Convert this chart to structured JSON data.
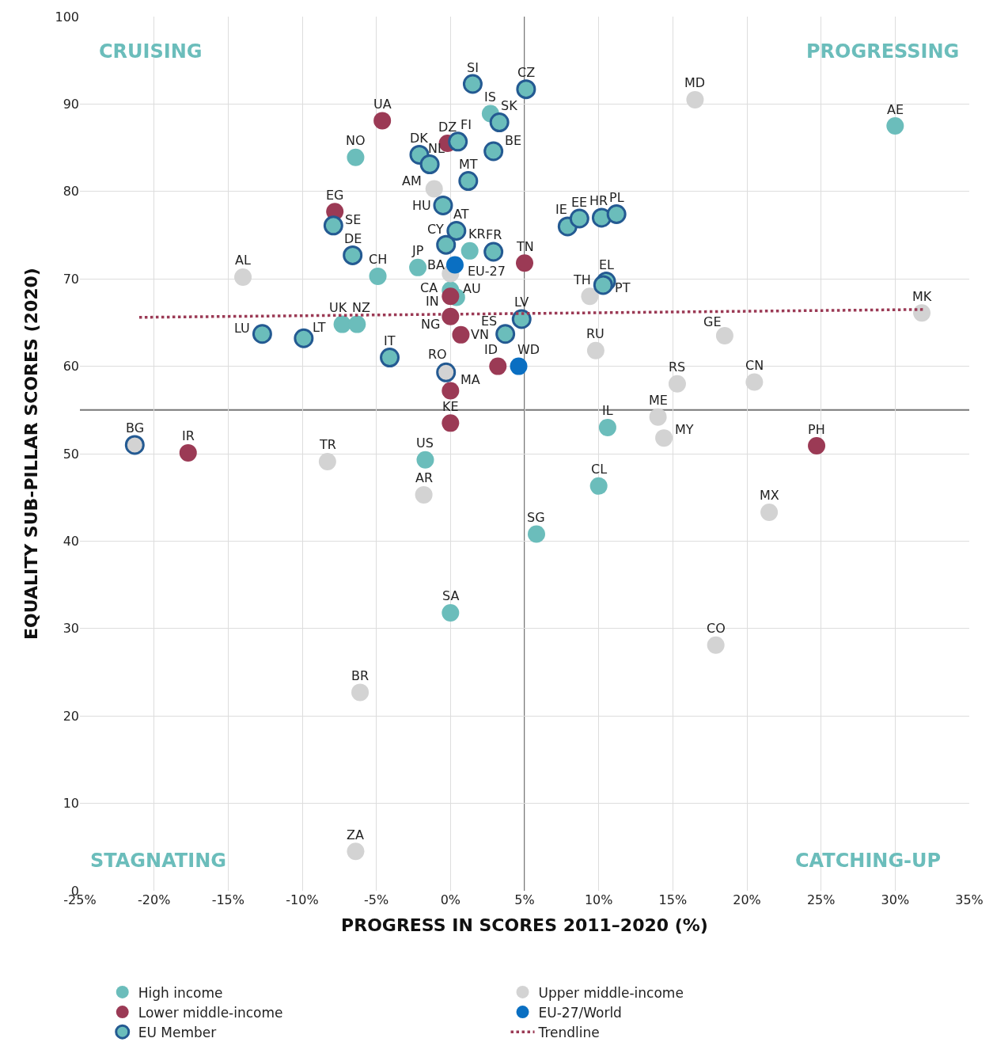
{
  "chart_data": {
    "type": "scatter",
    "xlabel": "PROGRESS IN SCORES 2011–2020 (%)",
    "ylabel": "EQUALITY SUB-PILLAR SCORES (2020)",
    "xlim": [
      -25,
      35
    ],
    "ylim": [
      0,
      100
    ],
    "xticks": [
      {
        "value": -25,
        "label": "-25%"
      },
      {
        "value": -20,
        "label": "-20%"
      },
      {
        "value": -15,
        "label": "-15%"
      },
      {
        "value": -10,
        "label": "-10%"
      },
      {
        "value": -5,
        "label": "-5%"
      },
      {
        "value": 0,
        "label": "0%"
      },
      {
        "value": 5,
        "label": "5%"
      },
      {
        "value": 10,
        "label": "10%"
      },
      {
        "value": 15,
        "label": "15%"
      },
      {
        "value": 20,
        "label": "20%"
      },
      {
        "value": 25,
        "label": "25%"
      },
      {
        "value": 30,
        "label": "30%"
      },
      {
        "value": 35,
        "label": "35%"
      }
    ],
    "yticks": [
      0,
      10,
      20,
      30,
      40,
      50,
      60,
      70,
      80,
      90,
      100
    ],
    "grid": true,
    "legend": "bottom",
    "marker": "circle",
    "ref_lines": [
      {
        "axis": "x",
        "value": 5,
        "label": null,
        "color": "#777777"
      },
      {
        "axis": "y",
        "value": 55,
        "label": null,
        "color": "#777777"
      }
    ],
    "annotations": [
      "CRUISING",
      "PROGRESSING",
      "STAGNATING",
      "CATCHING-UP",
      {
        "text": "IS",
        "x": 2.7,
        "y": 88.9
      },
      {
        "text": "NO",
        "x": -6.4,
        "y": 83.9
      },
      {
        "text": "CH",
        "x": -4.9,
        "y": 70.3
      },
      {
        "text": "JP",
        "x": -2.2,
        "y": 71.3
      },
      {
        "text": "KR",
        "x": 1.3,
        "y": 73.2
      },
      {
        "text": "CA",
        "x": 0,
        "y": 68.7
      },
      {
        "text": "AU",
        "x": 0.4,
        "y": 67.9
      },
      {
        "text": "UK",
        "x": -7.3,
        "y": 64.8
      },
      {
        "text": "NZ",
        "x": -6.3,
        "y": 64.8
      },
      {
        "text": "US",
        "x": -1.7,
        "y": 49.3
      },
      {
        "text": "SA",
        "x": 0,
        "y": 31.8
      },
      {
        "text": "SG",
        "x": 5.8,
        "y": 40.8
      },
      {
        "text": "CL",
        "x": 10.0,
        "y": 46.3
      },
      {
        "text": "IL",
        "x": 10.6,
        "y": 53.0
      },
      {
        "text": "AE",
        "x": 30.0,
        "y": 87.5
      },
      {
        "text": "AM",
        "x": -1.1,
        "y": 80.3
      },
      {
        "text": "BA",
        "x": 0,
        "y": 70.6
      },
      {
        "text": "AL",
        "x": -14.0,
        "y": 70.2
      },
      {
        "text": "MD",
        "x": 16.5,
        "y": 90.5
      },
      {
        "text": "TH",
        "x": 9.4,
        "y": 68.0
      },
      {
        "text": "RU",
        "x": 9.8,
        "y": 61.8
      },
      {
        "text": "GE",
        "x": 18.5,
        "y": 63.5
      },
      {
        "text": "MK",
        "x": 31.8,
        "y": 66.1
      },
      {
        "text": "RS",
        "x": 15.3,
        "y": 58.0
      },
      {
        "text": "CN",
        "x": 20.5,
        "y": 58.2
      },
      {
        "text": "ME",
        "x": 14.0,
        "y": 54.2
      },
      {
        "text": "MY",
        "x": 14.4,
        "y": 51.8
      },
      {
        "text": "MX",
        "x": 21.5,
        "y": 43.3
      },
      {
        "text": "CO",
        "x": 17.9,
        "y": 28.1
      },
      {
        "text": "TR",
        "x": -8.3,
        "y": 49.1
      },
      {
        "text": "AR",
        "x": -1.8,
        "y": 45.3
      },
      {
        "text": "BR",
        "x": -6.1,
        "y": 22.7
      },
      {
        "text": "ZA",
        "x": -6.4,
        "y": 4.5
      },
      {
        "text": "UA",
        "x": -4.6,
        "y": 88.1
      },
      {
        "text": "DZ",
        "x": -0.2,
        "y": 85.5
      },
      {
        "text": "EG",
        "x": -7.8,
        "y": 77.7
      },
      {
        "text": "TN",
        "x": 5.0,
        "y": 71.8
      },
      {
        "text": "IN",
        "x": 0,
        "y": 68.0
      },
      {
        "text": "NG",
        "x": 0,
        "y": 65.7
      },
      {
        "text": "VN",
        "x": 0.7,
        "y": 63.6
      },
      {
        "text": "ID",
        "x": 3.2,
        "y": 60.0
      },
      {
        "text": "MA",
        "x": 0,
        "y": 57.2
      },
      {
        "text": "KE",
        "x": 0,
        "y": 53.5
      },
      {
        "text": "IR",
        "x": -17.7,
        "y": 50.1
      },
      {
        "text": "PH",
        "x": 24.7,
        "y": 50.9
      },
      {
        "text": "EU-27",
        "x": 0.3,
        "y": 71.6
      },
      {
        "text": "WD",
        "x": 4.6,
        "y": 60.0
      },
      {
        "text": "SI",
        "x": 1.5,
        "y": 92.3
      },
      {
        "text": "CZ",
        "x": 5.1,
        "y": 91.7
      },
      {
        "text": "SK",
        "x": 3.3,
        "y": 87.9
      },
      {
        "text": "FI",
        "x": 0.5,
        "y": 85.7
      },
      {
        "text": "BE",
        "x": 2.9,
        "y": 84.6
      },
      {
        "text": "DK",
        "x": -2.1,
        "y": 84.2
      },
      {
        "text": "NL",
        "x": -1.4,
        "y": 83.1
      },
      {
        "text": "MT",
        "x": 1.2,
        "y": 81.2
      },
      {
        "text": "HU",
        "x": -0.5,
        "y": 78.4
      },
      {
        "text": "SE",
        "x": -7.9,
        "y": 76.1
      },
      {
        "text": "AT",
        "x": 0.4,
        "y": 75.5
      },
      {
        "text": "CY",
        "x": -0.3,
        "y": 73.9
      },
      {
        "text": "DE",
        "x": -6.6,
        "y": 72.7
      },
      {
        "text": "FR",
        "x": 2.9,
        "y": 73.1
      },
      {
        "text": "IE",
        "x": 7.9,
        "y": 76.0
      },
      {
        "text": "EE",
        "x": 8.7,
        "y": 76.9
      },
      {
        "text": "HR",
        "x": 10.2,
        "y": 77.0
      },
      {
        "text": "PL",
        "x": 11.2,
        "y": 77.4
      },
      {
        "text": "EL",
        "x": 10.5,
        "y": 69.7
      },
      {
        "text": "PT",
        "x": 10.3,
        "y": 69.3
      },
      {
        "text": "LU",
        "x": -12.7,
        "y": 63.7
      },
      {
        "text": "LT",
        "x": -9.9,
        "y": 63.2
      },
      {
        "text": "IT",
        "x": -4.1,
        "y": 61.0
      },
      {
        "text": "LV",
        "x": 4.8,
        "y": 65.4
      },
      {
        "text": "ES",
        "x": 3.7,
        "y": 63.7
      },
      {
        "text": "RO",
        "x": -0.3,
        "y": 59.3
      },
      {
        "text": "BG",
        "x": -21.3,
        "y": 51.0
      }
    ],
    "series": [
      {
        "name": "High income",
        "color": "#6bbdbb",
        "x": [
          2.7,
          -6.4,
          -4.9,
          -2.2,
          1.3,
          0,
          0.4,
          -7.3,
          -6.3,
          -1.7,
          0,
          5.8,
          10.0,
          10.6,
          30.0
        ],
        "values": [
          88.9,
          83.9,
          70.3,
          71.3,
          73.2,
          68.7,
          67.9,
          64.8,
          64.8,
          49.3,
          31.8,
          40.8,
          46.3,
          53.0,
          87.5
        ]
      },
      {
        "name": "Upper middle-income",
        "color": "#d3d3d3",
        "x": [
          -1.1,
          0,
          -14.0,
          16.5,
          9.4,
          9.8,
          18.5,
          31.8,
          15.3,
          20.5,
          14.0,
          14.4,
          21.5,
          17.9,
          -8.3,
          -1.8,
          -6.1,
          -6.4
        ],
        "values": [
          80.3,
          70.6,
          70.2,
          90.5,
          68.0,
          61.8,
          63.5,
          66.1,
          58.0,
          58.2,
          54.2,
          51.8,
          43.3,
          28.1,
          49.1,
          45.3,
          22.7,
          4.5
        ]
      },
      {
        "name": "Lower middle-income",
        "color": "#9b3a55",
        "x": [
          -4.6,
          -0.2,
          -7.8,
          5.0,
          0,
          0,
          0.7,
          3.2,
          0,
          0,
          -17.7,
          24.7
        ],
        "values": [
          88.1,
          85.5,
          77.7,
          71.8,
          68.0,
          65.7,
          63.6,
          60.0,
          57.2,
          53.5,
          50.1,
          50.9
        ]
      },
      {
        "name": "EU-27/World",
        "color": "#0a6fc2",
        "x": [
          0.3,
          4.6
        ],
        "values": [
          71.6,
          60.0
        ]
      },
      {
        "name": "EU Member",
        "color": "#245a92",
        "colors": [
          "#6bbdbb",
          "#6bbdbb",
          "#6bbdbb",
          "#6bbdbb",
          "#6bbdbb",
          "#6bbdbb",
          "#6bbdbb",
          "#6bbdbb",
          "#6bbdbb",
          "#6bbdbb",
          "#6bbdbb",
          "#6bbdbb",
          "#6bbdbb",
          "#6bbdbb",
          "#6bbdbb",
          "#6bbdbb",
          "#6bbdbb",
          "#6bbdbb",
          "#6bbdbb",
          "#6bbdbb",
          "#6bbdbb",
          "#6bbdbb",
          "#6bbdbb",
          "#6bbdbb",
          "#6bbdbb",
          "#d3d3d3",
          "#d3d3d3"
        ],
        "x": [
          1.5,
          5.1,
          3.3,
          0.5,
          2.9,
          -2.1,
          -1.4,
          1.2,
          -0.5,
          -7.9,
          0.4,
          -0.3,
          -6.6,
          2.9,
          7.9,
          8.7,
          10.2,
          11.2,
          10.5,
          10.3,
          -12.7,
          -9.9,
          -4.1,
          4.8,
          3.7,
          -0.3,
          -21.3
        ],
        "values": [
          92.3,
          91.7,
          87.9,
          85.7,
          84.6,
          84.2,
          83.1,
          81.2,
          78.4,
          76.1,
          75.5,
          73.9,
          72.7,
          73.1,
          76.0,
          76.9,
          77.0,
          77.4,
          69.7,
          69.3,
          63.7,
          63.2,
          61.0,
          65.4,
          63.7,
          59.3,
          51.0
        ]
      },
      {
        "name": "Trendline",
        "type": "line",
        "marker": "none",
        "color": "#9b3a55",
        "line_style": "dotted",
        "x": [
          -21,
          32
        ],
        "values": [
          65.6,
          66.5
        ]
      }
    ]
  }
}
